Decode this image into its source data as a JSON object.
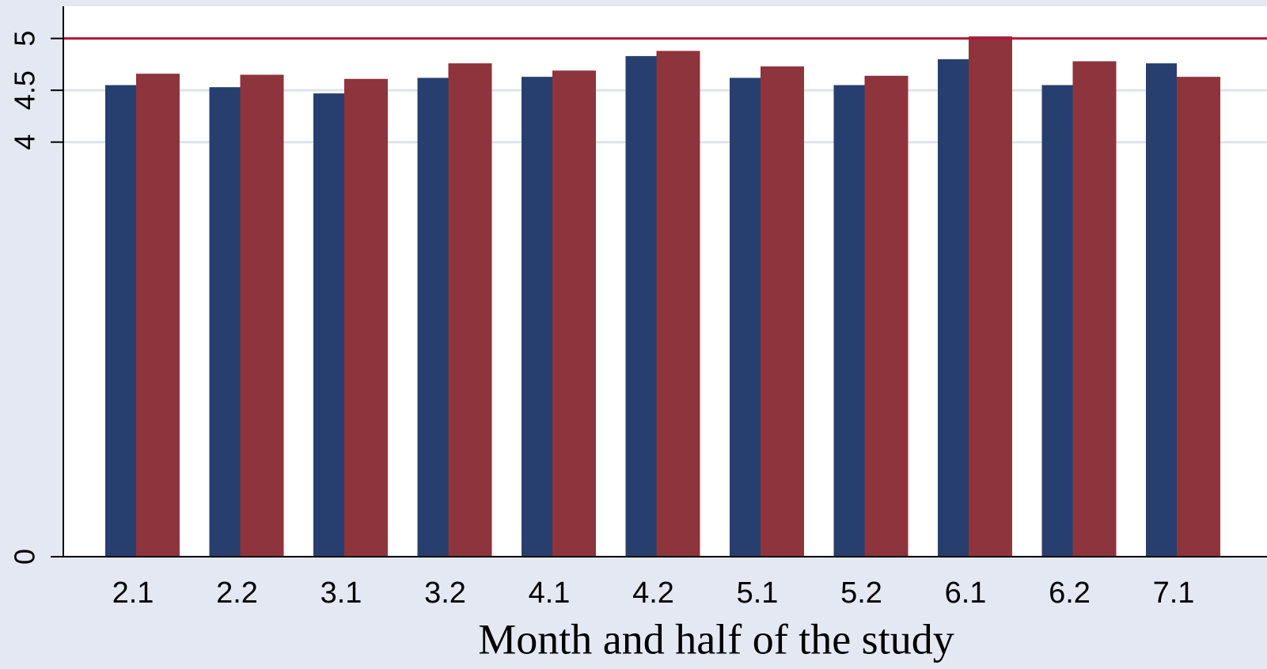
{
  "chart_data": {
    "type": "bar",
    "x_label": "Month and half of the study",
    "categories": [
      "2.1",
      "2.2",
      "3.1",
      "3.2",
      "4.1",
      "4.2",
      "5.1",
      "5.2",
      "6.1",
      "6.2",
      "7.1"
    ],
    "series": [
      {
        "color": "#273f6e",
        "values": [
          4.55,
          4.53,
          4.47,
          4.62,
          4.63,
          4.83,
          4.62,
          4.55,
          4.8,
          4.55,
          4.76
        ]
      },
      {
        "color": "#8e343c",
        "values": [
          4.66,
          4.65,
          4.61,
          4.76,
          4.69,
          4.88,
          4.73,
          4.64,
          5.02,
          4.78,
          4.63
        ]
      }
    ],
    "ylim": [
      0,
      5.31
    ],
    "yticks": [
      0,
      4,
      4.5,
      5
    ],
    "grid": true,
    "reference_line": {
      "value": 5,
      "color": "#b3193a"
    }
  }
}
